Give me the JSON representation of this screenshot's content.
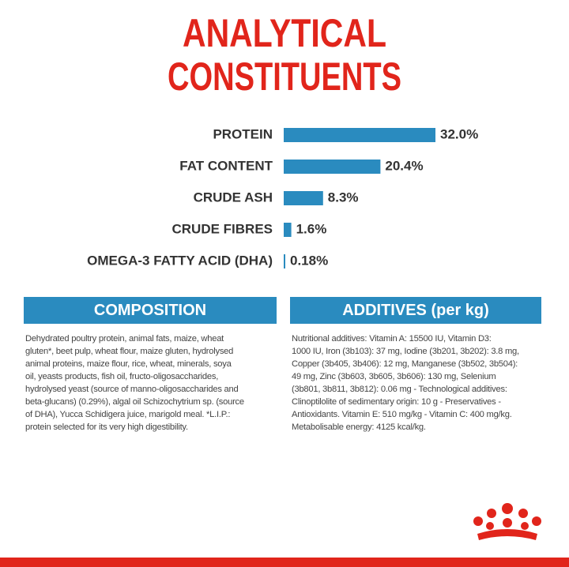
{
  "chart_data": {
    "type": "hbar",
    "title": [
      "ANALYTICAL",
      "CONSTITUENTS"
    ],
    "categories": [
      "PROTEIN",
      "FAT CONTENT",
      "CRUDE ASH",
      "CRUDE FIBRES",
      "OMEGA-3 FATTY ACID (DHA)"
    ],
    "values": [
      32.0,
      20.4,
      8.3,
      1.6,
      0.18
    ],
    "value_labels": [
      "32.0%",
      "20.4%",
      "8.3%",
      "1.6%",
      "0.18%"
    ],
    "color": "#2a8bbf"
  },
  "composition": {
    "title": "COMPOSITION",
    "lines": [
      "Dehydrated poultry protein, animal fats, maize, wheat",
      "gluten*, beet pulp, wheat flour, maize gluten, hydrolysed",
      "animal proteins, maize flour, rice, wheat, minerals, soya",
      "oil, yeasts products, fish oil, fructo-oligosaccharides,",
      "hydrolysed yeast (source of manno-oligosaccharides and",
      "beta-glucans) (0.29%), algal oil Schizochytrium sp. (source",
      "of DHA), Yucca Schidigera juice, marigold meal. *L.I.P.:",
      "protein selected for its very high digestibility."
    ]
  },
  "additives": {
    "title": "ADDITIVES (per kg)",
    "lines": [
      "Nutritional additives: Vitamin A: 15500 IU, Vitamin D3:",
      "1000 IU, Iron (3b103): 37 mg, Iodine (3b201, 3b202): 3.8 mg,",
      "Copper (3b405, 3b406): 12 mg, Manganese (3b502, 3b504):",
      "49 mg, Zinc (3b603, 3b605, 3b606): 130 mg, Selenium",
      "(3b801, 3b811, 3b812): 0.06 mg - Technological additives:",
      "Clinoptilolite of sedimentary origin: 10 g - Preservatives -",
      "Antioxidants. Vitamin E: 510 mg/kg - Vitamin C: 400 mg/kg.",
      "Metabolisable energy: 4125 kcal/kg."
    ]
  }
}
